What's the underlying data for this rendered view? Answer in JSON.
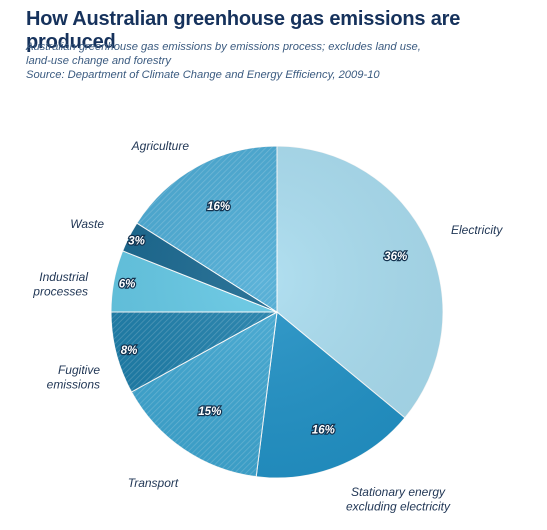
{
  "header": {
    "title": "How Australian greenhouse gas emissions are produced",
    "subtitle": "Australian greenhouse gas emissions by emissions process; excludes land use, land-use change and forestry",
    "source": "Source: Department of Climate Change and Energy Efficiency, 2009-10"
  },
  "chart_data": {
    "type": "pie",
    "title": "How Australian greenhouse gas emissions are produced",
    "start": "12 o'clock, clockwise",
    "slices": [
      {
        "label": [
          "Electricity"
        ],
        "value": 36,
        "value_label": "36%",
        "color": "#a9dcef",
        "hatched": false
      },
      {
        "label": [
          "Stationary energy",
          "excluding electricity"
        ],
        "value": 16,
        "value_label": "16%",
        "color": "#2292c6",
        "hatched": false
      },
      {
        "label": [
          "Transport"
        ],
        "value": 15,
        "value_label": "15%",
        "color": "#3ea6d1",
        "hatched": true
      },
      {
        "label": [
          "Fugitive",
          "emissions"
        ],
        "value": 8,
        "value_label": "8%",
        "color": "#1c7da9",
        "hatched": true
      },
      {
        "label": [
          "Industrial",
          "processes"
        ],
        "value": 6,
        "value_label": "6%",
        "color": "#62c6e3",
        "hatched": false
      },
      {
        "label": [
          "Waste"
        ],
        "value": 3,
        "value_label": "3%",
        "color": "#17668e",
        "hatched": false
      },
      {
        "label": [
          "Agriculture"
        ],
        "value": 16,
        "value_label": "16%",
        "color": "#4aaad4",
        "hatched": true
      }
    ]
  }
}
